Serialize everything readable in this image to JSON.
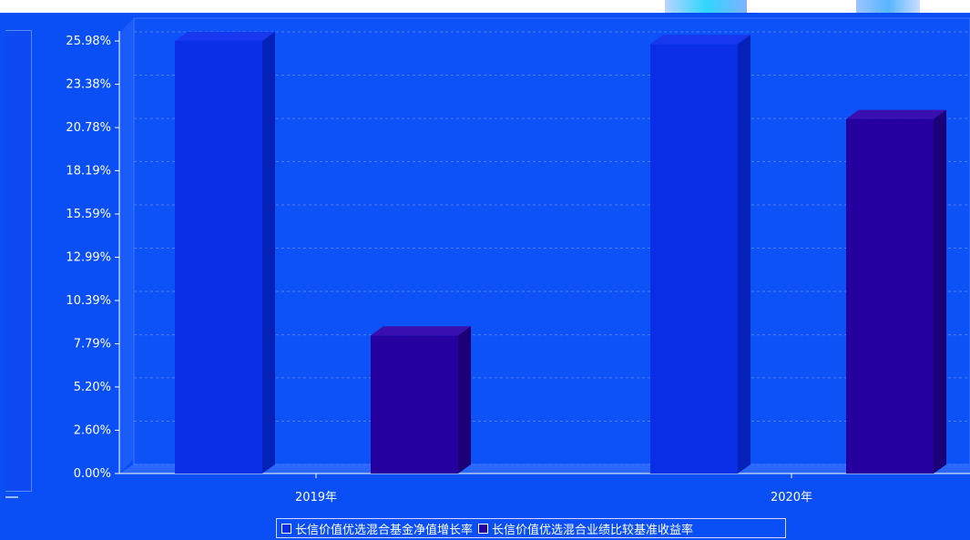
{
  "colors": {
    "background": "#0a4ff5",
    "series1": "#0a2ee6",
    "series2": "#26009e",
    "grid": "#4d7dff",
    "text": "#ffffff"
  },
  "chart_data": {
    "type": "bar",
    "categories": [
      "2019年",
      "2020年"
    ],
    "series": [
      {
        "name": "长信价值优选混合基金净值增长率",
        "values": [
          25.98,
          25.8
        ]
      },
      {
        "name": "长信价值优选混合业绩比较基准收益率",
        "values": [
          8.3,
          21.3
        ]
      }
    ],
    "yticks": [
      "0.00%",
      "2.60%",
      "5.20%",
      "7.79%",
      "10.39%",
      "12.99%",
      "15.59%",
      "18.19%",
      "20.78%",
      "23.38%",
      "25.98%"
    ],
    "ylim": [
      0,
      27
    ],
    "grid": true,
    "legend_position": "bottom"
  }
}
